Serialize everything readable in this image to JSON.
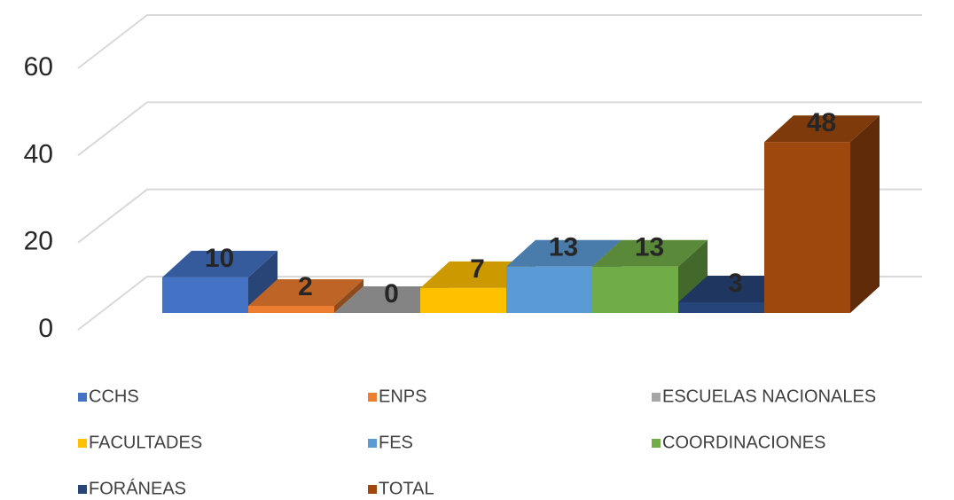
{
  "chart_data": {
    "type": "bar3d",
    "series": [
      {
        "name": "CCHS",
        "color": "#4472c4",
        "values": [
          10
        ]
      },
      {
        "name": "ENPS",
        "color": "#ed7d31",
        "values": [
          2
        ]
      },
      {
        "name": "ESCUELAS NACIONALES",
        "color": "#a5a5a5",
        "values": [
          0
        ]
      },
      {
        "name": "FACULTADES",
        "color": "#ffc000",
        "values": [
          7
        ]
      },
      {
        "name": "FES",
        "color": "#5b9bd5",
        "values": [
          13
        ]
      },
      {
        "name": "COORDINACIONES",
        "color": "#70ad47",
        "values": [
          13
        ]
      },
      {
        "name": "FORÁNEAS",
        "color": "#264478",
        "values": [
          3
        ]
      },
      {
        "name": "TOTAL",
        "color": "#9e480e",
        "values": [
          48
        ]
      }
    ],
    "ylim": [
      0,
      60
    ],
    "yticks": [
      0,
      20,
      40,
      60
    ],
    "grid": true
  }
}
